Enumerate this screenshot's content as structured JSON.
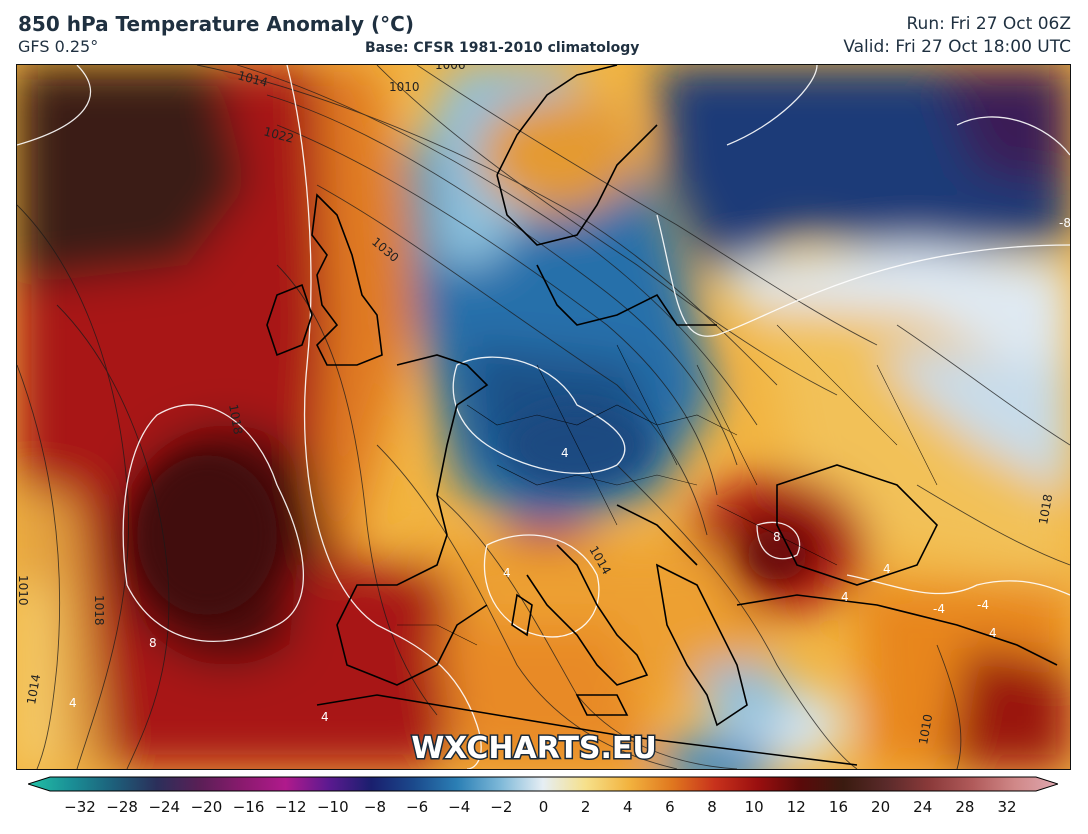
{
  "header": {
    "title": "850 hPa Temperature Anomaly (°C)",
    "model": "GFS 0.25°",
    "base": "Base: CFSR 1981-2010 climatology",
    "run": "Run: Fri 27 Oct 06Z",
    "valid": "Valid: Fri 27 Oct 18:00 UTC"
  },
  "watermark": "WXCHARTS.EU",
  "isobar_labels": [
    "1014",
    "1022",
    "1010",
    "1006",
    "1030",
    "1018",
    "1010",
    "1014",
    "1010",
    "1018",
    "1014",
    "1018"
  ],
  "anomaly_labels": [
    "8",
    "4",
    "8",
    "4",
    "4",
    "-4",
    "4",
    "4",
    "-4",
    "4",
    "-8",
    "4"
  ],
  "colorbar": {
    "ticks": [
      "−32",
      "−28",
      "−24",
      "−20",
      "−16",
      "−12",
      "−10",
      "−8",
      "−6",
      "−4",
      "−2",
      "0",
      "2",
      "4",
      "6",
      "8",
      "10",
      "12",
      "16",
      "20",
      "24",
      "28",
      "32"
    ],
    "colors": [
      "#22c1a6",
      "#1a8f96",
      "#1d5f7a",
      "#2b2f5a",
      "#5a1f56",
      "#8a1a6e",
      "#b01a8c",
      "#5c1a90",
      "#1a1f6e",
      "#1b4a8c",
      "#2b7fb5",
      "#7db8d8",
      "#e6eef4",
      "#f6e08a",
      "#f2b33f",
      "#e0781f",
      "#c8321c",
      "#9a0f0f",
      "#5a0a0a",
      "#3a1b10",
      "#5a2a2a",
      "#8a3a3a",
      "#b05a5a",
      "#d08888",
      "#e0a8b0"
    ]
  }
}
